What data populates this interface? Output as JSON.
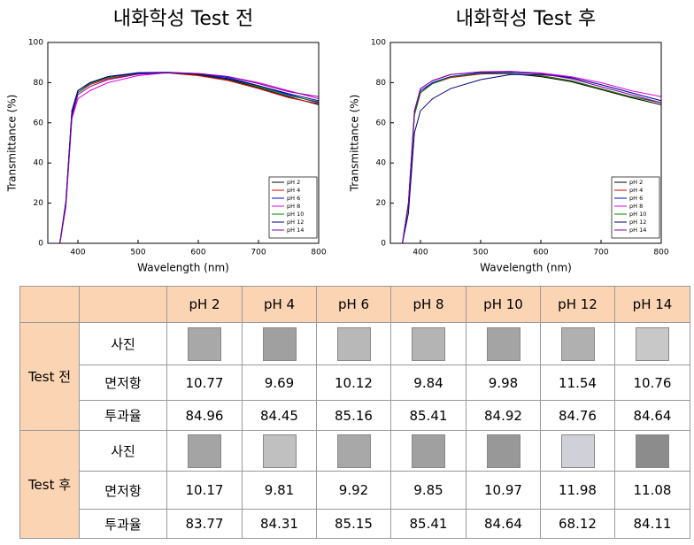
{
  "chart_data": [
    {
      "type": "line",
      "title": "내화학성 Test 전",
      "x_label": "Wavelength (nm)",
      "y_label": "Transmittance (%)",
      "xlim": [
        350,
        800
      ],
      "xticks": [
        400,
        500,
        600,
        700,
        800
      ],
      "ylim": [
        0,
        100
      ],
      "yticks": [
        0,
        20,
        40,
        60,
        80,
        100
      ],
      "legend": "lower-right",
      "x": [
        350,
        370,
        380,
        390,
        400,
        420,
        450,
        500,
        550,
        600,
        650,
        700,
        750,
        800
      ],
      "series": [
        {
          "name": "pH 2",
          "color": "#000000",
          "values": [
            0,
            0,
            20,
            66,
            76,
            80,
            83,
            84.8,
            85,
            83.8,
            81.5,
            77.5,
            73,
            69
          ]
        },
        {
          "name": "pH 4",
          "color": "#e00000",
          "values": [
            0,
            0,
            19,
            64,
            75,
            79,
            82,
            84.3,
            84.8,
            83.5,
            81,
            77,
            72.5,
            69.5
          ]
        },
        {
          "name": "pH 6",
          "color": "#0000ff",
          "values": [
            0,
            0,
            21,
            66,
            76,
            80,
            83,
            85,
            85.2,
            84.5,
            82.5,
            78.5,
            74,
            70
          ]
        },
        {
          "name": "pH 8",
          "color": "#e000e0",
          "values": [
            0,
            0,
            18,
            62,
            72,
            76,
            80,
            83.5,
            85,
            84.6,
            83,
            80,
            76,
            72
          ]
        },
        {
          "name": "pH 10",
          "color": "#008000",
          "values": [
            0,
            0,
            20,
            65,
            75,
            79.5,
            82.5,
            84.6,
            84.9,
            84,
            81.8,
            78,
            73.5,
            70.5
          ]
        },
        {
          "name": "pH 12",
          "color": "#000080",
          "values": [
            0,
            0,
            20,
            65,
            76,
            80,
            83,
            84.8,
            85,
            84.2,
            82,
            78.5,
            74.5,
            71
          ]
        },
        {
          "name": "pH 14",
          "color": "#8000a0",
          "values": [
            0,
            0,
            19,
            63,
            74,
            78,
            81.5,
            84.2,
            85,
            84.5,
            83,
            79.5,
            75.5,
            73
          ]
        }
      ]
    },
    {
      "type": "line",
      "title": "내화학성 Test 후",
      "x_label": "Wavelength (nm)",
      "y_label": "Transmittance (%)",
      "xlim": [
        350,
        800
      ],
      "xticks": [
        400,
        500,
        600,
        700,
        800
      ],
      "ylim": [
        0,
        100
      ],
      "yticks": [
        0,
        20,
        40,
        60,
        80,
        100
      ],
      "legend": "lower-right",
      "x": [
        350,
        370,
        380,
        390,
        400,
        420,
        450,
        500,
        550,
        600,
        650,
        700,
        750,
        800
      ],
      "series": [
        {
          "name": "pH 2",
          "color": "#000000",
          "values": [
            0,
            0,
            19,
            64,
            75,
            80,
            83,
            84.5,
            84.5,
            83,
            80.5,
            76.5,
            72.5,
            69
          ]
        },
        {
          "name": "pH 4",
          "color": "#e00000",
          "values": [
            0,
            0,
            19,
            64,
            75,
            79.5,
            82.5,
            84.3,
            84.5,
            83.5,
            81,
            77,
            73,
            70
          ]
        },
        {
          "name": "pH 6",
          "color": "#0000ff",
          "values": [
            0,
            0,
            20,
            65,
            76,
            80,
            83,
            85,
            85.2,
            84.5,
            82.5,
            79,
            75,
            71
          ]
        },
        {
          "name": "pH 8",
          "color": "#e000e0",
          "values": [
            0,
            0,
            20,
            66,
            77,
            81,
            84,
            85.3,
            85.5,
            84.8,
            83,
            80,
            76,
            73
          ]
        },
        {
          "name": "pH 10",
          "color": "#008000",
          "values": [
            0,
            0,
            19,
            64,
            75,
            79.5,
            82.8,
            84.6,
            84.6,
            83.5,
            81,
            77,
            73,
            70
          ]
        },
        {
          "name": "pH 12",
          "color": "#000080",
          "values": [
            0,
            0,
            15,
            55,
            66,
            72,
            77,
            81.5,
            84,
            84,
            82.5,
            79,
            75,
            71
          ]
        },
        {
          "name": "pH 14",
          "color": "#8000a0",
          "values": [
            0,
            0,
            20,
            66,
            77,
            81,
            84,
            85.4,
            85.6,
            84.5,
            82,
            78,
            74,
            70
          ]
        }
      ]
    }
  ],
  "table": {
    "header": [
      "pH 2",
      "pH 4",
      "pH 6",
      "pH 8",
      "pH 10",
      "pH 12",
      "pH 14"
    ],
    "groups": [
      {
        "name": "Test 전",
        "rows": [
          {
            "label": "사진"
          },
          {
            "label": "면저항",
            "values": [
              "10.77",
              "9.69",
              "10.12",
              "9.84",
              "9.98",
              "11.54",
              "10.76"
            ]
          },
          {
            "label": "투과율",
            "values": [
              "84.96",
              "84.45",
              "85.16",
              "85.41",
              "84.92",
              "84.76",
              "84.64"
            ]
          }
        ]
      },
      {
        "name": "Test 후",
        "rows": [
          {
            "label": "사진"
          },
          {
            "label": "면저항",
            "values": [
              "10.17",
              "9.81",
              "9.92",
              "9.85",
              "10.97",
              "11.98",
              "11.08"
            ]
          },
          {
            "label": "투과율",
            "values": [
              "83.77",
              "84.31",
              "85.15",
              "85.41",
              "84.64",
              "68.12",
              "84.11"
            ]
          }
        ]
      }
    ]
  }
}
